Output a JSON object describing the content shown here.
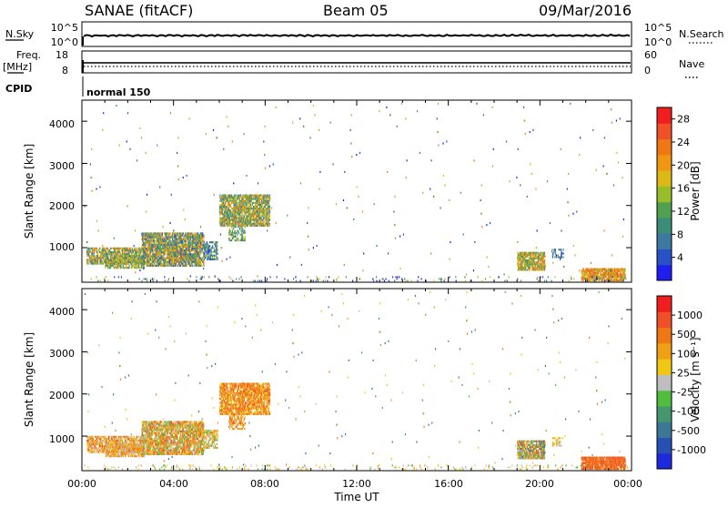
{
  "header": {
    "station": "SANAE (fitACF)",
    "beam": "Beam 05",
    "date": "09/Mar/2016"
  },
  "noise_panel": {
    "left_label": "N.Sky",
    "left_ticks": [
      "10^5",
      "10^0"
    ],
    "right_label": "N.Search",
    "right_ticks": [
      "10^5",
      "10^0"
    ]
  },
  "freq_panel": {
    "left_label_1": "Freq.",
    "left_label_2": "[MHz]",
    "left_ticks": [
      "18",
      "8"
    ],
    "right_label": "Nave",
    "right_ticks": [
      "60",
      "0"
    ]
  },
  "cpid": {
    "label": "CPID",
    "value": "normal 150"
  },
  "x_axis": {
    "ticks": [
      "00:00",
      "04:00",
      "08:00",
      "12:00",
      "16:00",
      "20:00",
      "00:00"
    ],
    "label": "Time UT"
  },
  "y_axis": {
    "label": "Slant Range [km]",
    "ticks": [
      "1000",
      "2000",
      "3000",
      "4000"
    ]
  },
  "colors": {
    "power": [
      "#1E1EF0",
      "#2850C8",
      "#3C78A0",
      "#3C8C78",
      "#50A050",
      "#96BE28",
      "#DCB914",
      "#F09614",
      "#F07814",
      "#F05028",
      "#F01E1E"
    ],
    "velocity": [
      "#1E28DC",
      "#2850B4",
      "#3C7896",
      "#46966E",
      "#50BE3C",
      "#BEBEBE",
      "#F0C814",
      "#F0A014",
      "#F07814",
      "#F05028",
      "#F01E1E"
    ]
  },
  "chart_data": [
    {
      "type": "heatmap",
      "name": "power",
      "ylabel": "Slant Range [km]",
      "xlabel": "Time UT",
      "xlim_hours": [
        0,
        24
      ],
      "ylim_km": [
        180,
        4500
      ],
      "colorbar": {
        "label": "Power [dB]",
        "ticks": [
          "4",
          "8",
          "12",
          "16",
          "20",
          "24",
          "28"
        ],
        "range": [
          0,
          30
        ]
      },
      "regions": [
        {
          "t0": 0.2,
          "t1": 2.6,
          "r0": 600,
          "r1": 1000,
          "density": 0.45,
          "cmin": 2,
          "cmax": 8
        },
        {
          "t0": 1.0,
          "t1": 2.7,
          "r0": 500,
          "r1": 800,
          "density": 0.35,
          "cmin": 2,
          "cmax": 7
        },
        {
          "t0": 2.6,
          "t1": 5.3,
          "r0": 550,
          "r1": 1350,
          "density": 0.55,
          "cmin": 1,
          "cmax": 8
        },
        {
          "t0": 5.3,
          "t1": 5.9,
          "r0": 700,
          "r1": 1150,
          "density": 0.35,
          "cmin": 0,
          "cmax": 5
        },
        {
          "t0": 6.0,
          "t1": 8.2,
          "r0": 1500,
          "r1": 2250,
          "density": 0.5,
          "cmin": 2,
          "cmax": 8
        },
        {
          "t0": 6.4,
          "t1": 7.1,
          "r0": 1150,
          "r1": 1500,
          "density": 0.3,
          "cmin": 2,
          "cmax": 6
        },
        {
          "t0": 19.0,
          "t1": 20.2,
          "r0": 450,
          "r1": 900,
          "density": 0.55,
          "cmin": 3,
          "cmax": 8
        },
        {
          "t0": 20.5,
          "t1": 21.0,
          "r0": 750,
          "r1": 950,
          "density": 0.25,
          "cmin": 0,
          "cmax": 4
        },
        {
          "t0": 21.8,
          "t1": 23.7,
          "r0": 200,
          "r1": 500,
          "density": 0.6,
          "cmin": 5,
          "cmax": 9
        },
        {
          "t0": 0.1,
          "t1": 23.8,
          "r0": 190,
          "r1": 300,
          "density": 0.04,
          "cmin": 0,
          "cmax": 6
        },
        {
          "t0": 0.1,
          "t1": 23.8,
          "r0": 300,
          "r1": 4400,
          "density": 0.0015,
          "cmin": 0,
          "cmax": 8
        }
      ]
    },
    {
      "type": "heatmap",
      "name": "velocity",
      "ylabel": "Slant Range [km]",
      "xlabel": "Time UT",
      "xlim_hours": [
        0,
        24
      ],
      "ylim_km": [
        180,
        4500
      ],
      "colorbar": {
        "label": "Velocity [m s⁻¹]",
        "ticks": [
          "1000",
          "500",
          "100",
          "25",
          "-25",
          "-100",
          "-500",
          "-1000"
        ],
        "range": [
          -1200,
          1200
        ]
      },
      "regions": [
        {
          "t0": 0.2,
          "t1": 2.6,
          "r0": 600,
          "r1": 1000,
          "density": 0.45,
          "cmin": 5,
          "cmax": 9
        },
        {
          "t0": 1.0,
          "t1": 2.7,
          "r0": 500,
          "r1": 800,
          "density": 0.35,
          "cmin": 5,
          "cmax": 8
        },
        {
          "t0": 2.6,
          "t1": 5.3,
          "r0": 550,
          "r1": 1350,
          "density": 0.55,
          "cmin": 4,
          "cmax": 9
        },
        {
          "t0": 5.3,
          "t1": 5.9,
          "r0": 700,
          "r1": 1150,
          "density": 0.35,
          "cmin": 4,
          "cmax": 8
        },
        {
          "t0": 6.0,
          "t1": 8.2,
          "r0": 1500,
          "r1": 2250,
          "density": 0.5,
          "cmin": 6,
          "cmax": 9
        },
        {
          "t0": 6.4,
          "t1": 7.1,
          "r0": 1150,
          "r1": 1500,
          "density": 0.3,
          "cmin": 6,
          "cmax": 9
        },
        {
          "t0": 19.0,
          "t1": 20.2,
          "r0": 450,
          "r1": 900,
          "density": 0.55,
          "cmin": 2,
          "cmax": 9
        },
        {
          "t0": 20.5,
          "t1": 21.0,
          "r0": 750,
          "r1": 950,
          "density": 0.25,
          "cmin": 5,
          "cmax": 7
        },
        {
          "t0": 21.8,
          "t1": 23.7,
          "r0": 200,
          "r1": 500,
          "density": 0.6,
          "cmin": 8,
          "cmax": 9
        },
        {
          "t0": 0.1,
          "t1": 23.8,
          "r0": 190,
          "r1": 300,
          "density": 0.04,
          "cmin": 4,
          "cmax": 7
        },
        {
          "t0": 0.1,
          "t1": 23.8,
          "r0": 300,
          "r1": 4400,
          "density": 0.0015,
          "cmin": 2,
          "cmax": 8
        }
      ]
    }
  ]
}
